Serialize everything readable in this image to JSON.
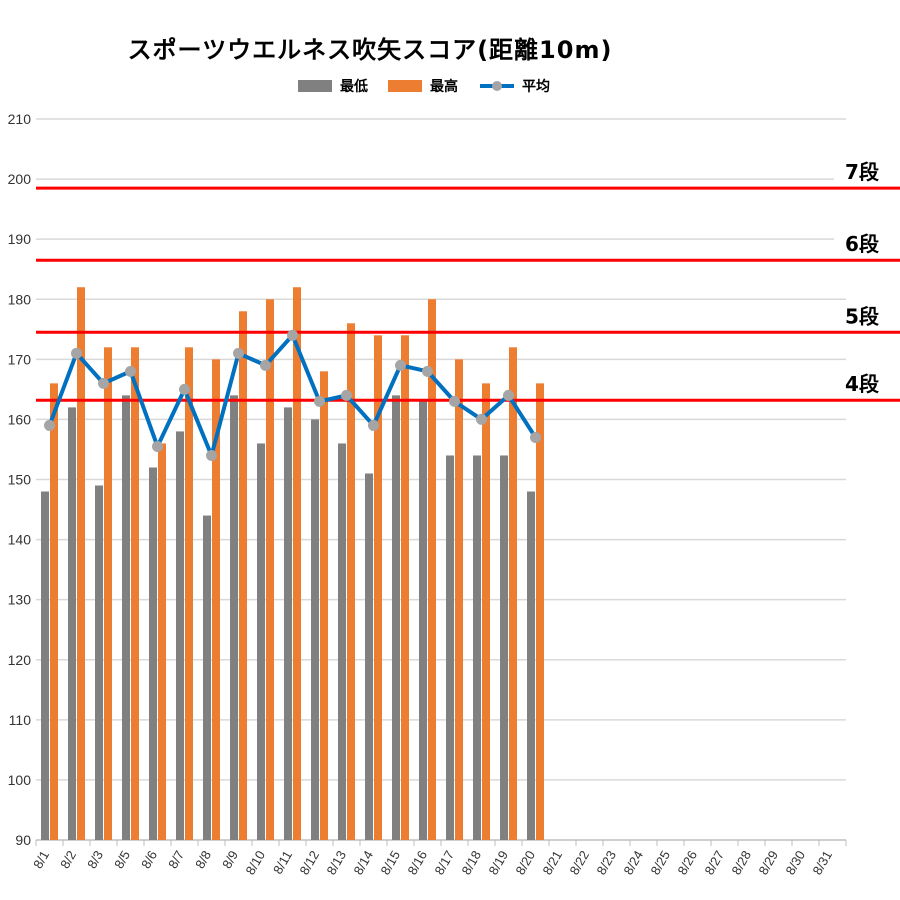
{
  "chart_data": {
    "type": "bar",
    "title": "スポーツウエルネス吹矢スコア(距離10m)",
    "xlabel": "",
    "ylabel": "",
    "ylim": [
      90,
      210
    ],
    "yticks": [
      90,
      100,
      110,
      120,
      130,
      140,
      150,
      160,
      170,
      180,
      190,
      200,
      210
    ],
    "grid": true,
    "legend_position": "top",
    "categories": [
      "8/1",
      "8/2",
      "8/3",
      "8/5",
      "8/6",
      "8/7",
      "8/8",
      "8/9",
      "8/10",
      "8/11",
      "8/12",
      "8/13",
      "8/14",
      "8/15",
      "8/16",
      "8/17",
      "8/18",
      "8/19",
      "8/20",
      "8/21",
      "8/22",
      "8/23",
      "8/24",
      "8/25",
      "8/26",
      "8/27",
      "8/28",
      "8/29",
      "8/30",
      "8/31"
    ],
    "series": [
      {
        "name": "最低",
        "type": "bar",
        "color": "#808080",
        "values": [
          148,
          162,
          149,
          164,
          152,
          158,
          144,
          164,
          156,
          162,
          160,
          156,
          151,
          164,
          163,
          154,
          154,
          154,
          148,
          null,
          null,
          null,
          null,
          null,
          null,
          null,
          null,
          null,
          null,
          null
        ]
      },
      {
        "name": "最高",
        "type": "bar",
        "color": "#ED7D31",
        "values": [
          166,
          182,
          172,
          172,
          156,
          172,
          170,
          178,
          180,
          182,
          168,
          176,
          174,
          174,
          180,
          170,
          166,
          172,
          166,
          null,
          null,
          null,
          null,
          null,
          null,
          null,
          null,
          null,
          null,
          null
        ]
      },
      {
        "name": "平均",
        "type": "line",
        "color": "#0070C0",
        "marker_color": "#A5A5A5",
        "values": [
          159,
          171,
          166,
          168,
          155.5,
          165,
          154,
          171,
          169,
          174,
          163,
          164,
          159,
          169,
          168,
          163,
          160,
          164,
          157,
          null,
          null,
          null,
          null,
          null,
          null,
          null,
          null,
          null,
          null,
          null
        ]
      }
    ],
    "reference_lines": [
      {
        "label": "7段",
        "value": 198.5,
        "color": "#FF0000"
      },
      {
        "label": "6段",
        "value": 186.5,
        "color": "#FF0000"
      },
      {
        "label": "5段",
        "value": 174.5,
        "color": "#FF0000"
      },
      {
        "label": "4段",
        "value": 163.2,
        "color": "#FF0000"
      }
    ]
  }
}
